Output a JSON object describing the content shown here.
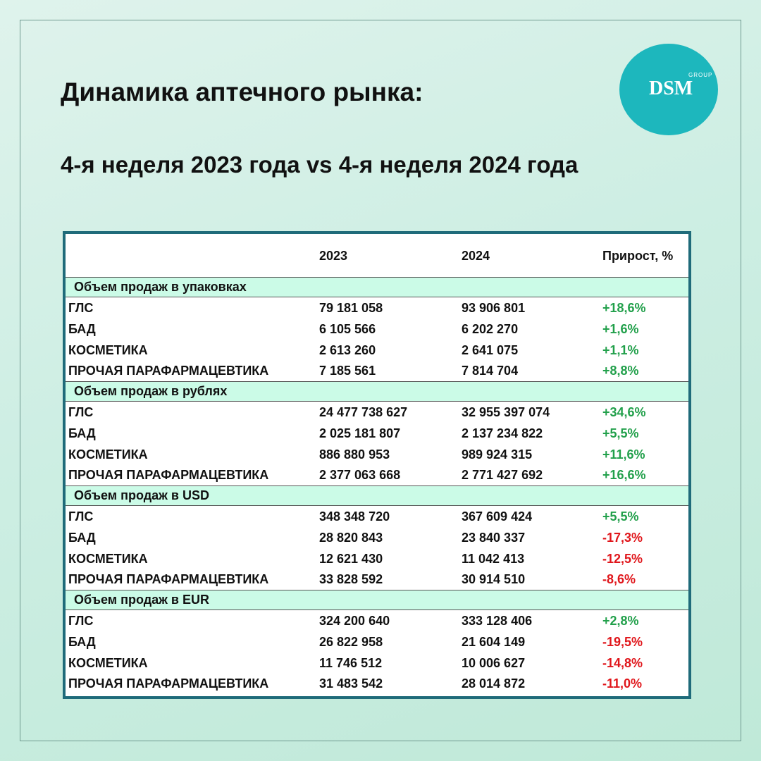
{
  "header": {
    "title": "Динамика аптечного рынка:",
    "subtitle": "4-я неделя 2023 года vs 4-я неделя 2024 года"
  },
  "logo": {
    "group": "GROUP",
    "brand": "DSM"
  },
  "table": {
    "columns": [
      "2023",
      "2024",
      "Прирост, %"
    ],
    "sections": [
      {
        "title": "Объем продаж в упаковках",
        "rows": [
          [
            "ГЛС",
            "79 181 058",
            "93 906 801",
            "+18,6%"
          ],
          [
            "БАД",
            "6 105 566",
            "6 202 270",
            "+1,6%"
          ],
          [
            "КОСМЕТИКА",
            "2 613 260",
            "2 641 075",
            "+1,1%"
          ],
          [
            "ПРОЧАЯ ПАРАФАРМАЦЕВТИКА",
            "7 185 561",
            "7 814 704",
            "+8,8%"
          ]
        ]
      },
      {
        "title": "Объем продаж в рублях",
        "rows": [
          [
            "ГЛС",
            "24 477 738 627",
            "32 955 397 074",
            "+34,6%"
          ],
          [
            "БАД",
            "2 025 181 807",
            "2 137 234 822",
            "+5,5%"
          ],
          [
            "КОСМЕТИКА",
            "886 880 953",
            "989 924 315",
            "+11,6%"
          ],
          [
            "ПРОЧАЯ ПАРАФАРМАЦЕВТИКА",
            "2 377 063 668",
            "2 771 427 692",
            "+16,6%"
          ]
        ]
      },
      {
        "title": "Объем продаж в USD",
        "rows": [
          [
            "ГЛС",
            "348 348 720",
            "367 609 424",
            "+5,5%"
          ],
          [
            "БАД",
            "28 820 843",
            "23 840 337",
            "-17,3%"
          ],
          [
            "КОСМЕТИКА",
            "12 621 430",
            "11 042 413",
            "-12,5%"
          ],
          [
            "ПРОЧАЯ ПАРАФАРМАЦЕВТИКА",
            "33 828 592",
            "30 914 510",
            "-8,6%"
          ]
        ]
      },
      {
        "title": "Объем продаж в EUR",
        "rows": [
          [
            "ГЛС",
            "324 200 640",
            "333 128 406",
            "+2,8%"
          ],
          [
            "БАД",
            "26 822 958",
            "21 604 149",
            "-19,5%"
          ],
          [
            "КОСМЕТИКА",
            "11 746 512",
            "10 006 627",
            "-14,8%"
          ],
          [
            "ПРОЧАЯ ПАРАФАРМАЦЕВТИКА",
            "31 483 542",
            "28 014 872",
            "-11,0%"
          ]
        ]
      }
    ]
  }
}
